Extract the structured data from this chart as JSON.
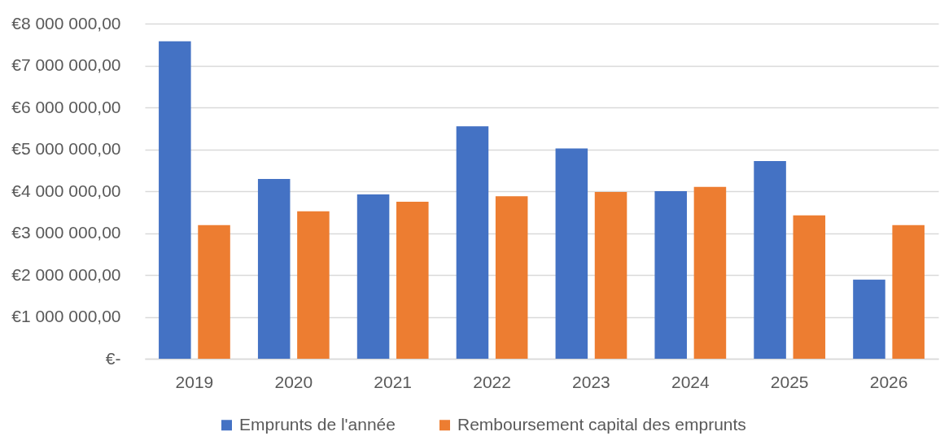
{
  "chart_data": {
    "type": "bar",
    "categories": [
      "2019",
      "2020",
      "2021",
      "2022",
      "2023",
      "2024",
      "2025",
      "2026"
    ],
    "series": [
      {
        "name": "Emprunts de l'année",
        "color": "#4472c4",
        "values": [
          7580000,
          4290000,
          3920000,
          5550000,
          5020000,
          4000000,
          4720000,
          1890000
        ]
      },
      {
        "name": "Remboursement capital des emprunts",
        "color": "#ed7d31",
        "values": [
          3190000,
          3520000,
          3750000,
          3880000,
          3980000,
          4100000,
          3420000,
          3190000
        ]
      }
    ],
    "ylim": [
      0,
      8000000
    ],
    "yticks": [
      {
        "value": 0,
        "label": "€-"
      },
      {
        "value": 1000000,
        "label": "€1 000 000,00"
      },
      {
        "value": 2000000,
        "label": "€2 000 000,00"
      },
      {
        "value": 3000000,
        "label": "€3 000 000,00"
      },
      {
        "value": 4000000,
        "label": "€4 000 000,00"
      },
      {
        "value": 5000000,
        "label": "€5 000 000,00"
      },
      {
        "value": 6000000,
        "label": "€6 000 000,00"
      },
      {
        "value": 7000000,
        "label": "€7 000 000,00"
      },
      {
        "value": 8000000,
        "label": "€8 000 000,00"
      }
    ],
    "grid": "y",
    "legend": "bottom"
  }
}
